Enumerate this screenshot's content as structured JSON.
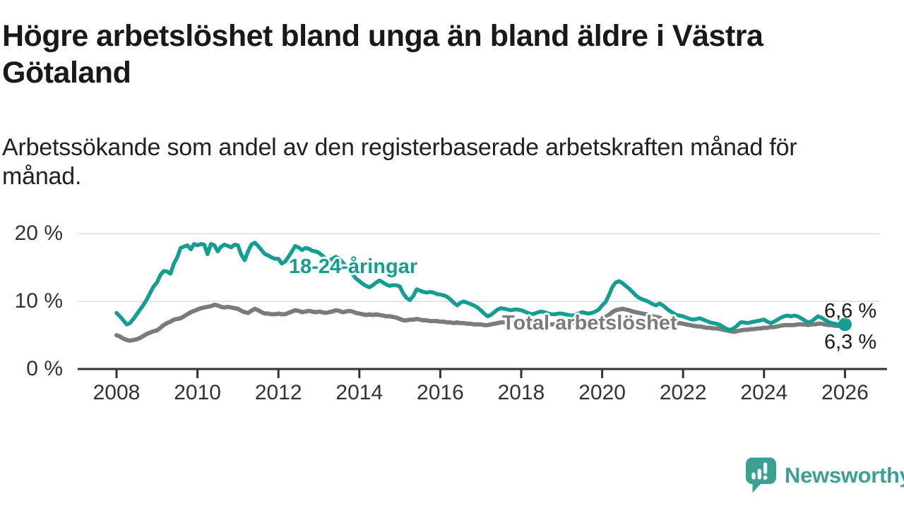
{
  "title": "Högre arbetslöshet bland unga än bland äldre i Västra Götaland",
  "title_lines": [
    "Högre arbetslöshet bland unga än bland äldre i Västra",
    "Götaland"
  ],
  "subtitle": "Arbetssökande som andel av den registerbaserade arbetskraften månad för månad.",
  "subtitle_lines": [
    "Arbetssökande som andel av den registerbaserade arbetskraften månad för",
    "månad."
  ],
  "logo": {
    "text": "Newsworthy",
    "icon": "speech-bubble-bar-chart-icon",
    "color": "#3aa193"
  },
  "colors": {
    "youth_line": "#149e91",
    "total_line": "#7b7b7b",
    "axis": "#333333",
    "gridline": "#dcdcdc"
  },
  "chart_data": {
    "type": "line",
    "title": "Högre arbetslöshet bland unga än bland äldre i Västra Götaland",
    "x_unit": "monthly",
    "x_start": "2008-01",
    "x_end": "2026-01",
    "x_tick_labels": [
      "2008",
      "2010",
      "2012",
      "2014",
      "2016",
      "2018",
      "2020",
      "2022",
      "2024",
      "2026"
    ],
    "y_ticks": [
      {
        "value": 0,
        "label": "0 %"
      },
      {
        "value": 10,
        "label": "10 %"
      },
      {
        "value": 20,
        "label": "20 %"
      }
    ],
    "ylim": [
      0,
      21
    ],
    "grid": "horizontal",
    "legend_position": "inline-labels",
    "series": [
      {
        "name": "18-24-åringar",
        "color": "#149e91",
        "end_label": "6,6 %",
        "end_value": 6.6,
        "values": [
          8.3,
          7.8,
          7.2,
          6.6,
          6.8,
          7.4,
          8.1,
          8.8,
          9.5,
          10.3,
          11.3,
          12.2,
          12.8,
          13.9,
          14.5,
          14.4,
          14.1,
          15.6,
          16.5,
          17.9,
          18.1,
          18.3,
          17.7,
          18.5,
          18.3,
          18.5,
          18.4,
          17.0,
          18.5,
          18.3,
          17.4,
          18.1,
          18.4,
          18.2,
          18.0,
          18.4,
          18.3,
          16.9,
          16.1,
          17.4,
          18.4,
          18.7,
          18.2,
          17.6,
          17.0,
          16.8,
          16.5,
          16.3,
          16.3,
          15.6,
          15.9,
          16.6,
          17.4,
          18.2,
          18.0,
          17.6,
          17.9,
          17.8,
          17.5,
          17.4,
          17.2,
          16.8,
          16.3,
          16.0,
          16.3,
          16.6,
          16.3,
          15.8,
          15.2,
          14.6,
          14.0,
          13.4,
          13.0,
          12.6,
          12.3,
          12.1,
          12.4,
          12.8,
          13.1,
          12.8,
          12.5,
          12.3,
          12.4,
          12.4,
          12.2,
          11.2,
          10.5,
          10.2,
          10.8,
          11.8,
          11.6,
          11.4,
          11.3,
          11.4,
          11.3,
          11.1,
          11.0,
          10.9,
          10.7,
          10.3,
          9.8,
          9.4,
          9.8,
          10.0,
          9.8,
          9.6,
          9.4,
          9.1,
          8.7,
          8.2,
          7.8,
          8.0,
          8.4,
          8.8,
          9.0,
          8.9,
          8.8,
          8.7,
          8.8,
          8.8,
          8.7,
          8.5,
          8.3,
          8.1,
          8.2,
          8.4,
          8.5,
          8.4,
          8.2,
          8.1,
          8.1,
          8.2,
          8.2,
          8.1,
          8.0,
          7.9,
          8.0,
          8.2,
          8.4,
          8.3,
          8.2,
          8.3,
          8.5,
          8.8,
          9.4,
          9.9,
          10.9,
          12.1,
          12.8,
          13.0,
          12.7,
          12.3,
          11.9,
          11.4,
          10.9,
          10.5,
          10.3,
          10.1,
          9.9,
          9.6,
          9.4,
          9.7,
          9.4,
          9.0,
          8.6,
          8.3,
          8.0,
          7.9,
          7.8,
          7.6,
          7.4,
          7.3,
          7.4,
          7.5,
          7.3,
          7.1,
          6.9,
          6.8,
          6.7,
          6.5,
          6.2,
          5.9,
          5.8,
          6.0,
          6.4,
          6.9,
          6.9,
          6.8,
          6.9,
          7.0,
          7.1,
          7.2,
          7.3,
          7.0,
          6.8,
          7.0,
          7.3,
          7.6,
          7.8,
          7.9,
          7.8,
          7.9,
          7.8,
          7.5,
          7.2,
          6.9,
          7.0,
          7.4,
          7.8,
          7.6,
          7.3,
          7.0,
          6.8,
          6.7,
          6.6,
          6.6,
          6.6
        ]
      },
      {
        "name": "Total arbetslöshet",
        "color": "#7b7b7b",
        "end_label": "6,3 %",
        "end_value": 6.3,
        "values": [
          5.0,
          4.8,
          4.5,
          4.3,
          4.2,
          4.3,
          4.4,
          4.6,
          4.9,
          5.2,
          5.4,
          5.6,
          5.7,
          6.1,
          6.5,
          6.8,
          7.0,
          7.3,
          7.4,
          7.5,
          7.8,
          8.1,
          8.4,
          8.6,
          8.8,
          9.0,
          9.1,
          9.2,
          9.3,
          9.5,
          9.4,
          9.2,
          9.1,
          9.2,
          9.1,
          9.0,
          8.9,
          8.6,
          8.4,
          8.3,
          8.6,
          8.9,
          8.7,
          8.4,
          8.2,
          8.2,
          8.1,
          8.1,
          8.2,
          8.1,
          8.1,
          8.3,
          8.5,
          8.7,
          8.6,
          8.4,
          8.5,
          8.6,
          8.5,
          8.4,
          8.5,
          8.4,
          8.3,
          8.4,
          8.5,
          8.7,
          8.6,
          8.4,
          8.5,
          8.6,
          8.5,
          8.3,
          8.2,
          8.1,
          8.0,
          8.1,
          8.0,
          8.1,
          8.0,
          7.9,
          7.8,
          7.8,
          7.7,
          7.6,
          7.4,
          7.2,
          7.2,
          7.3,
          7.3,
          7.4,
          7.3,
          7.2,
          7.2,
          7.1,
          7.1,
          7.1,
          7.0,
          7.0,
          6.9,
          6.9,
          6.8,
          6.9,
          6.8,
          6.8,
          6.7,
          6.7,
          6.6,
          6.6,
          6.6,
          6.5,
          6.5,
          6.6,
          6.7,
          6.8,
          6.9,
          6.9,
          6.8,
          6.8,
          6.8,
          6.8,
          6.8,
          6.7,
          6.7,
          6.6,
          6.6,
          6.7,
          6.8,
          6.7,
          6.6,
          6.6,
          6.6,
          6.7,
          6.7,
          6.7,
          6.8,
          6.8,
          6.9,
          7.0,
          7.1,
          7.1,
          7.1,
          7.2,
          7.2,
          7.3,
          7.5,
          7.7,
          8.0,
          8.4,
          8.7,
          8.8,
          8.9,
          8.8,
          8.7,
          8.5,
          8.4,
          8.3,
          8.2,
          8.1,
          8.0,
          7.8,
          7.7,
          7.6,
          7.4,
          7.2,
          7.0,
          6.9,
          6.8,
          6.8,
          6.7,
          6.6,
          6.5,
          6.4,
          6.3,
          6.3,
          6.2,
          6.1,
          6.1,
          6.0,
          6.0,
          5.9,
          5.8,
          5.7,
          5.6,
          5.5,
          5.6,
          5.7,
          5.8,
          5.8,
          5.9,
          5.9,
          6.0,
          6.0,
          6.1,
          6.1,
          6.2,
          6.2,
          6.3,
          6.4,
          6.5,
          6.5,
          6.5,
          6.5,
          6.6,
          6.6,
          6.6,
          6.5,
          6.6,
          6.6,
          6.7,
          6.7,
          6.6,
          6.5,
          6.5,
          6.4,
          6.4,
          6.3,
          6.3
        ]
      }
    ]
  }
}
